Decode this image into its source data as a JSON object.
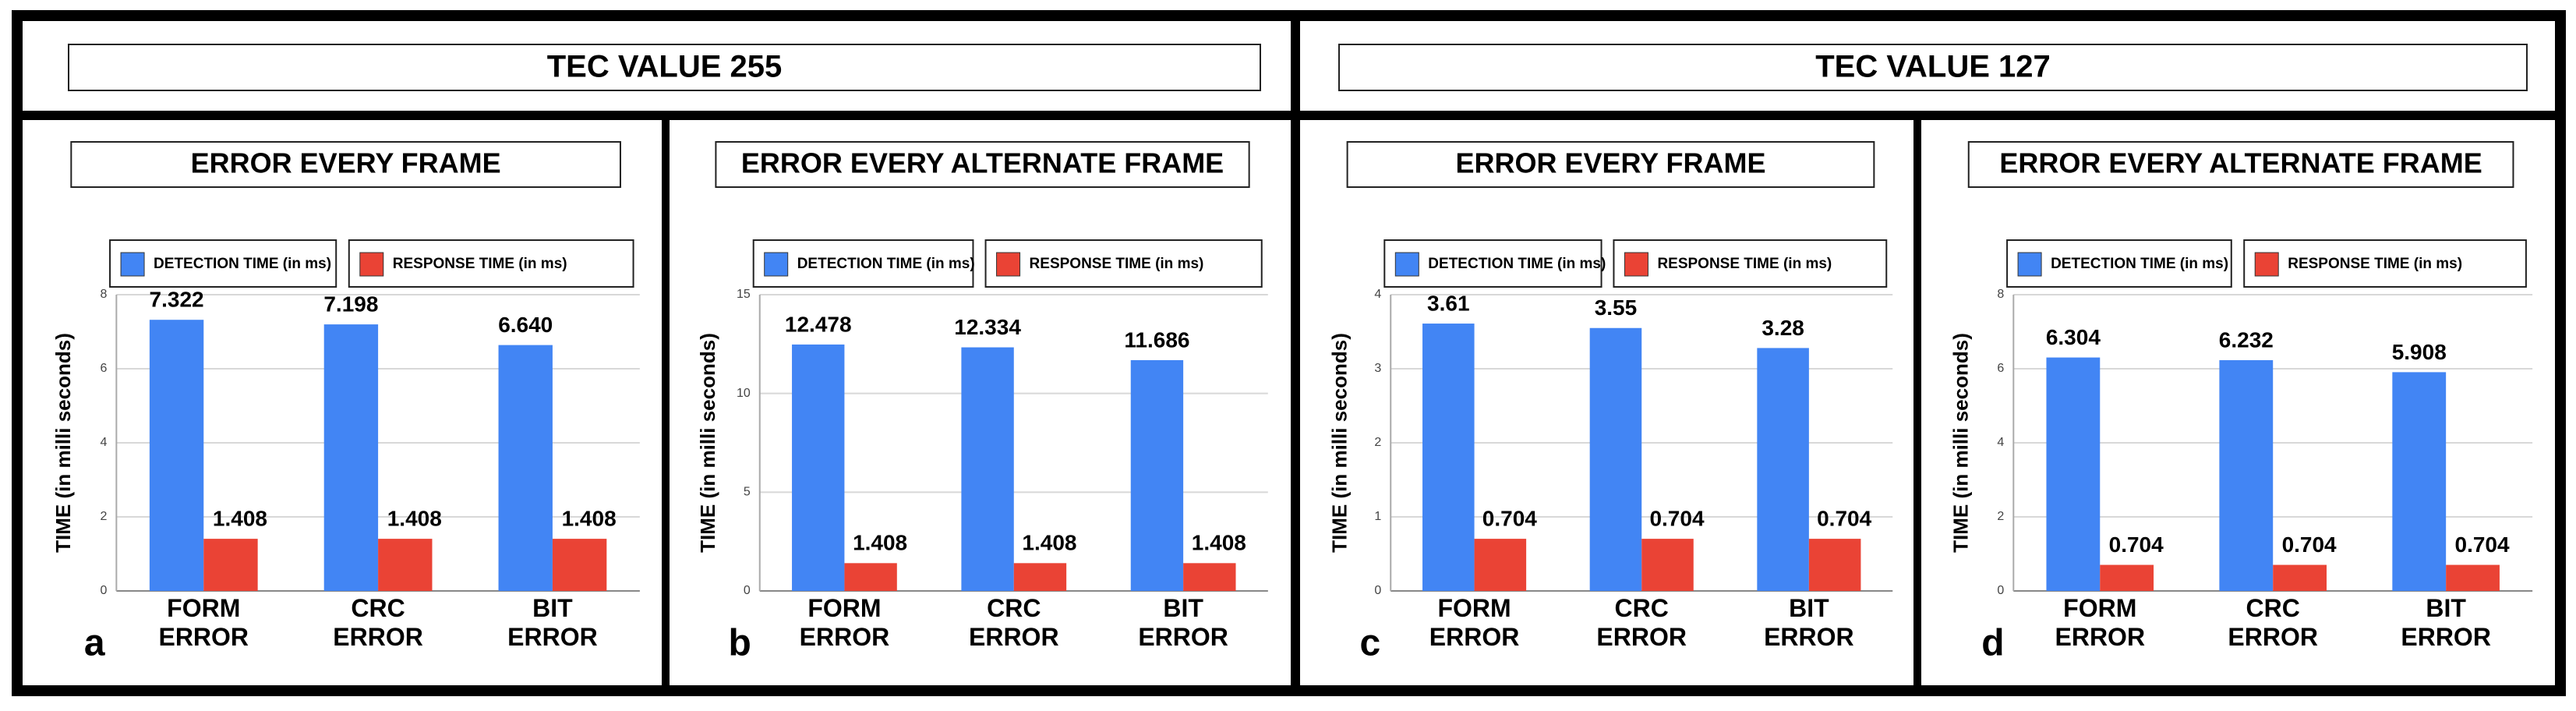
{
  "headers": [
    "TEC VALUE 255",
    "TEC VALUE 127"
  ],
  "chart_data": [
    {
      "type": "bar",
      "panel": "a",
      "title": "ERROR EVERY FRAME",
      "y_label": "TIME (in milli seconds)",
      "categories": [
        "FORM ERROR",
        "CRC ERROR",
        "BIT ERROR"
      ],
      "series": [
        {
          "name": "DETECTION TIME (in ms)",
          "color": "#4285f4",
          "values": [
            7.322,
            7.198,
            6.64
          ],
          "value_labels": [
            "7.322",
            "7.198",
            "6.640"
          ]
        },
        {
          "name": "RESPONSE TIME (in ms)",
          "color": "#ea4335",
          "values": [
            1.408,
            1.408,
            1.408
          ]
        }
      ],
      "ylim": [
        0,
        8
      ],
      "yticks": [
        0,
        2,
        4,
        6,
        8
      ],
      "grid": true
    },
    {
      "type": "bar",
      "panel": "b",
      "title": "ERROR EVERY ALTERNATE FRAME",
      "y_label": "TIME (in milli seconds)",
      "categories": [
        "FORM ERROR",
        "CRC ERROR",
        "BIT ERROR"
      ],
      "series": [
        {
          "name": "DETECTION TIME (in ms)",
          "color": "#4285f4",
          "values": [
            12.478,
            12.334,
            11.686
          ]
        },
        {
          "name": "RESPONSE TIME (in ms)",
          "color": "#ea4335",
          "values": [
            1.408,
            1.408,
            1.408
          ]
        }
      ],
      "ylim": [
        0,
        15
      ],
      "yticks": [
        0,
        5,
        10,
        15
      ],
      "grid": true
    },
    {
      "type": "bar",
      "panel": "c",
      "title": "ERROR EVERY FRAME",
      "y_label": "TIME (in milli seconds)",
      "categories": [
        "FORM ERROR",
        "CRC ERROR",
        "BIT ERROR"
      ],
      "series": [
        {
          "name": "DETECTION TIME (in ms)",
          "color": "#4285f4",
          "values": [
            3.61,
            3.55,
            3.28
          ]
        },
        {
          "name": "RESPONSE TIME (in ms)",
          "color": "#ea4335",
          "values": [
            0.704,
            0.704,
            0.704
          ]
        }
      ],
      "ylim": [
        0,
        4
      ],
      "yticks": [
        0,
        1,
        2,
        3,
        4
      ],
      "grid": true
    },
    {
      "type": "bar",
      "panel": "d",
      "title": "ERROR EVERY ALTERNATE FRAME",
      "y_label": "TIME (in milli seconds)",
      "categories": [
        "FORM ERROR",
        "CRC ERROR",
        "BIT ERROR"
      ],
      "series": [
        {
          "name": "DETECTION TIME (in ms)",
          "color": "#4285f4",
          "values": [
            6.304,
            6.232,
            5.908
          ]
        },
        {
          "name": "RESPONSE TIME (in ms)",
          "color": "#ea4335",
          "values": [
            0.704,
            0.704,
            0.704
          ]
        }
      ],
      "ylim": [
        0,
        8
      ],
      "yticks": [
        0,
        2,
        4,
        6,
        8
      ],
      "grid": true
    }
  ]
}
